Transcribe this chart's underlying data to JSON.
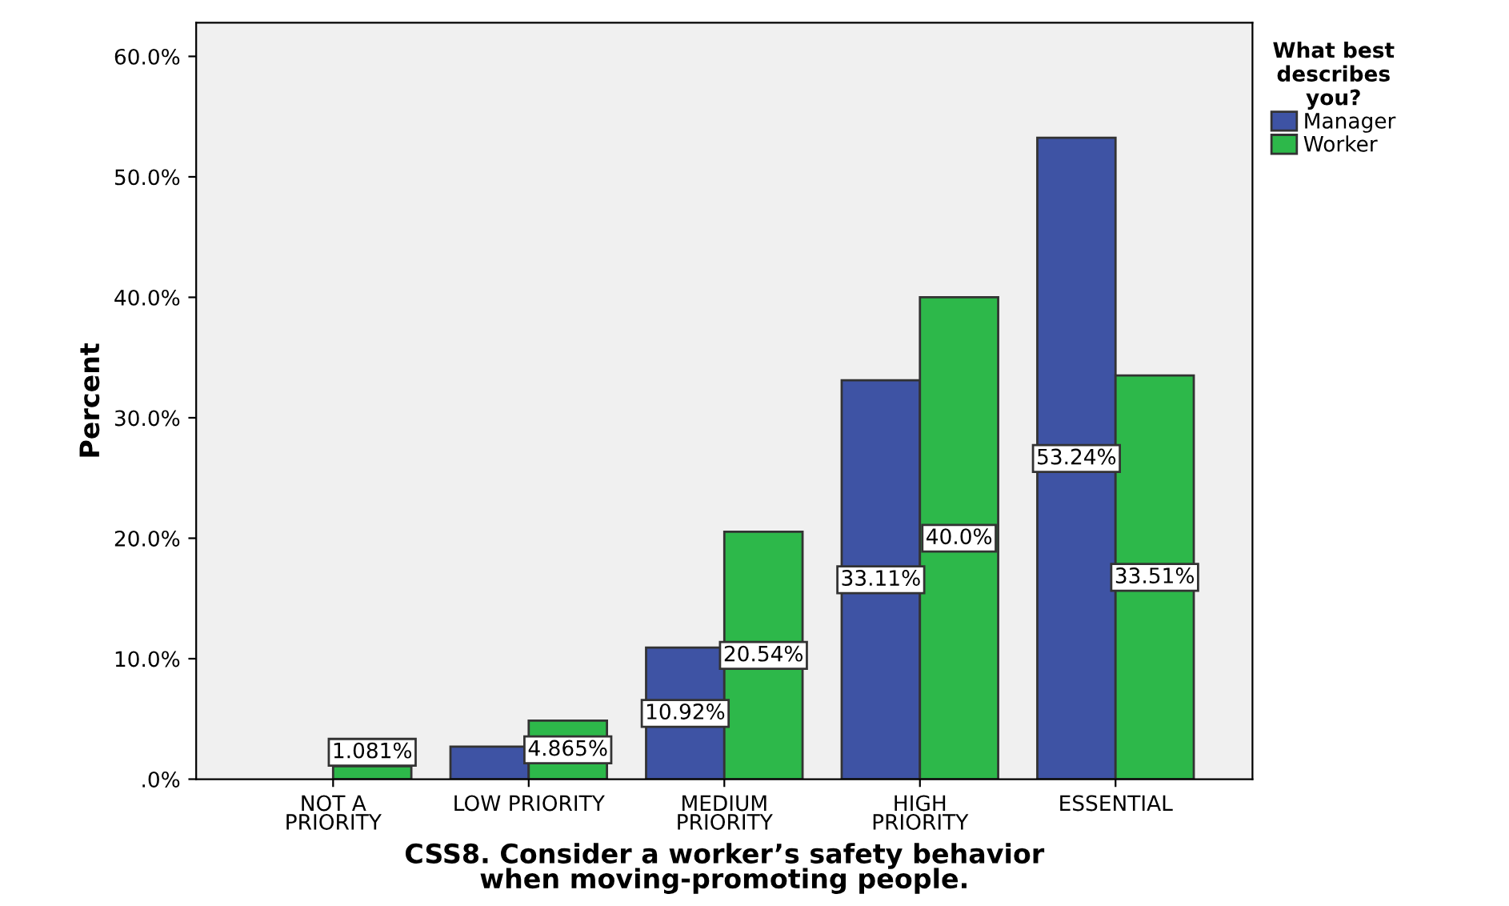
{
  "chart_data": {
    "type": "bar",
    "xlabel": "CSS8. Consider a worker’s safety behavior\nwhen moving-promoting people.",
    "ylabel": "Percent",
    "legend_title": "What best\ndescribes\nyou?",
    "categories": [
      "NOT A\nPRIORITY",
      "LOW PRIORITY",
      "MEDIUM\nPRIORITY",
      "HIGH\nPRIORITY",
      "ESSENTIAL"
    ],
    "series": [
      {
        "name": "Manager",
        "color": "#3e53a4",
        "values": [
          null,
          2.7,
          10.92,
          33.11,
          53.24
        ],
        "value_labels": [
          null,
          null,
          "10.92%",
          "33.11%",
          "53.24%"
        ]
      },
      {
        "name": "Worker",
        "color": "#2db84a",
        "values": [
          1.081,
          4.865,
          20.54,
          40.0,
          33.51
        ],
        "value_labels": [
          "1.081%",
          "4.865%",
          "20.54%",
          "40.0%",
          "33.51%"
        ]
      }
    ],
    "ylim": [
      0,
      62.8
    ],
    "yticks": [
      {
        "value": 0,
        "label": ".0%"
      },
      {
        "value": 10,
        "label": "10.0%"
      },
      {
        "value": 20,
        "label": "20.0%"
      },
      {
        "value": 30,
        "label": "30.0%"
      },
      {
        "value": 40,
        "label": "40.0%"
      },
      {
        "value": 50,
        "label": "50.0%"
      },
      {
        "value": 60,
        "label": "60.0%"
      }
    ],
    "grid": false,
    "legend": "top right"
  }
}
